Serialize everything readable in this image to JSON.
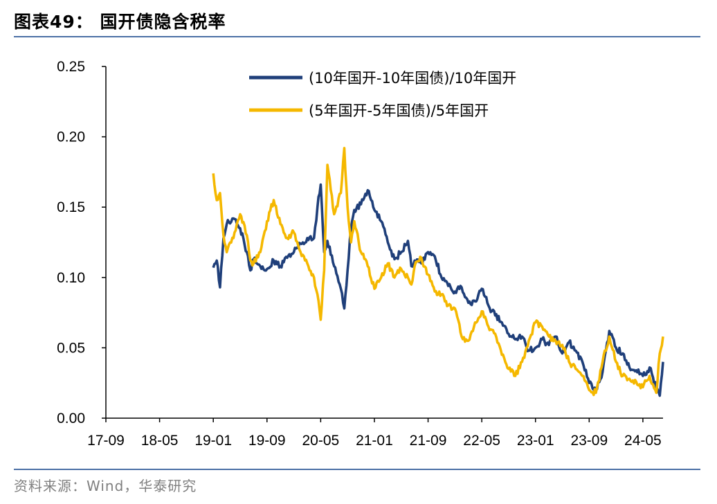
{
  "header": {
    "title": "图表49：  国开债隐含税率"
  },
  "footer": {
    "source": "资料来源：Wind，华泰研究"
  },
  "colors": {
    "series1": "#1f3f7a",
    "series2": "#f5b800",
    "rule": "#4a6fa5"
  },
  "chart_data": {
    "type": "line",
    "title": "",
    "xlabel": "",
    "ylabel": "",
    "ylim": [
      0,
      0.25
    ],
    "yticks": [
      "0.00",
      "0.05",
      "0.10",
      "0.15",
      "0.20",
      "0.25"
    ],
    "xticks": [
      "17-09",
      "18-05",
      "19-01",
      "19-09",
      "20-05",
      "21-01",
      "21-09",
      "22-05",
      "23-01",
      "23-09",
      "24-05"
    ],
    "xlim": [
      "17-09",
      "24-08"
    ],
    "grid": false,
    "legend": "top-center",
    "series": [
      {
        "name": "(10年国开-10年国债)/10年国开",
        "color": "#1f3f7a",
        "points": [
          [
            "19-01",
            0.107
          ],
          [
            "19-01",
            0.112
          ],
          [
            "19-02",
            0.093
          ],
          [
            "19-02",
            0.128
          ],
          [
            "19-03",
            0.138
          ],
          [
            "19-04",
            0.142
          ],
          [
            "19-05",
            0.135
          ],
          [
            "19-06",
            0.118
          ],
          [
            "19-06",
            0.105
          ],
          [
            "19-07",
            0.113
          ],
          [
            "19-08",
            0.108
          ],
          [
            "19-09",
            0.106
          ],
          [
            "19-10",
            0.112
          ],
          [
            "19-11",
            0.108
          ],
          [
            "19-12",
            0.114
          ],
          [
            "20-01",
            0.118
          ],
          [
            "20-02",
            0.124
          ],
          [
            "20-03",
            0.128
          ],
          [
            "20-04",
            0.128
          ],
          [
            "20-04",
            0.15
          ],
          [
            "20-05",
            0.166
          ],
          [
            "20-05",
            0.118
          ],
          [
            "20-06",
            0.126
          ],
          [
            "20-07",
            0.108
          ],
          [
            "20-08",
            0.092
          ],
          [
            "20-08",
            0.078
          ],
          [
            "20-09",
            0.105
          ],
          [
            "20-09",
            0.135
          ],
          [
            "20-10",
            0.148
          ],
          [
            "20-11",
            0.152
          ],
          [
            "20-12",
            0.162
          ],
          [
            "21-01",
            0.148
          ],
          [
            "21-02",
            0.14
          ],
          [
            "21-03",
            0.125
          ],
          [
            "21-04",
            0.113
          ],
          [
            "21-05",
            0.118
          ],
          [
            "21-06",
            0.126
          ],
          [
            "21-06",
            0.108
          ],
          [
            "21-07",
            0.112
          ],
          [
            "21-08",
            0.11
          ],
          [
            "21-09",
            0.118
          ],
          [
            "21-10",
            0.115
          ],
          [
            "21-11",
            0.1
          ],
          [
            "21-12",
            0.094
          ],
          [
            "22-01",
            0.09
          ],
          [
            "22-02",
            0.093
          ],
          [
            "22-03",
            0.082
          ],
          [
            "22-04",
            0.083
          ],
          [
            "22-05",
            0.092
          ],
          [
            "22-06",
            0.08
          ],
          [
            "22-07",
            0.073
          ],
          [
            "22-08",
            0.068
          ],
          [
            "22-09",
            0.06
          ],
          [
            "22-10",
            0.056
          ],
          [
            "22-11",
            0.058
          ],
          [
            "22-12",
            0.048
          ],
          [
            "23-01",
            0.05
          ],
          [
            "23-02",
            0.056
          ],
          [
            "23-03",
            0.052
          ],
          [
            "23-04",
            0.058
          ],
          [
            "23-05",
            0.046
          ],
          [
            "23-06",
            0.054
          ],
          [
            "23-07",
            0.048
          ],
          [
            "23-08",
            0.04
          ],
          [
            "23-09",
            0.025
          ],
          [
            "23-10",
            0.02
          ],
          [
            "23-11",
            0.033
          ],
          [
            "23-12",
            0.062
          ],
          [
            "24-01",
            0.05
          ],
          [
            "24-02",
            0.046
          ],
          [
            "24-03",
            0.036
          ],
          [
            "24-04",
            0.034
          ],
          [
            "24-05",
            0.03
          ],
          [
            "24-06",
            0.036
          ],
          [
            "24-07",
            0.022
          ],
          [
            "24-07",
            0.016
          ],
          [
            "24-08",
            0.04
          ]
        ]
      },
      {
        "name": "(5年国开-5年国债)/5年国开",
        "color": "#f5b800",
        "points": [
          [
            "19-01",
            0.174
          ],
          [
            "19-01",
            0.155
          ],
          [
            "19-02",
            0.16
          ],
          [
            "19-02",
            0.13
          ],
          [
            "19-03",
            0.118
          ],
          [
            "19-04",
            0.128
          ],
          [
            "19-05",
            0.145
          ],
          [
            "19-06",
            0.13
          ],
          [
            "19-06",
            0.112
          ],
          [
            "19-07",
            0.11
          ],
          [
            "19-08",
            0.118
          ],
          [
            "19-09",
            0.14
          ],
          [
            "19-10",
            0.155
          ],
          [
            "19-11",
            0.138
          ],
          [
            "19-12",
            0.128
          ],
          [
            "20-01",
            0.132
          ],
          [
            "20-02",
            0.118
          ],
          [
            "20-03",
            0.11
          ],
          [
            "20-04",
            0.1
          ],
          [
            "20-04",
            0.088
          ],
          [
            "20-05",
            0.07
          ],
          [
            "20-05",
            0.105
          ],
          [
            "20-06",
            0.18
          ],
          [
            "20-07",
            0.145
          ],
          [
            "20-08",
            0.16
          ],
          [
            "20-08",
            0.192
          ],
          [
            "20-09",
            0.15
          ],
          [
            "20-09",
            0.125
          ],
          [
            "20-10",
            0.14
          ],
          [
            "20-11",
            0.118
          ],
          [
            "20-12",
            0.108
          ],
          [
            "21-01",
            0.092
          ],
          [
            "21-02",
            0.1
          ],
          [
            "21-03",
            0.11
          ],
          [
            "21-04",
            0.1
          ],
          [
            "21-05",
            0.106
          ],
          [
            "21-06",
            0.1
          ],
          [
            "21-06",
            0.095
          ],
          [
            "21-07",
            0.108
          ],
          [
            "21-08",
            0.114
          ],
          [
            "21-09",
            0.102
          ],
          [
            "21-10",
            0.09
          ],
          [
            "21-11",
            0.088
          ],
          [
            "21-12",
            0.08
          ],
          [
            "22-01",
            0.078
          ],
          [
            "22-02",
            0.058
          ],
          [
            "22-03",
            0.055
          ],
          [
            "22-04",
            0.068
          ],
          [
            "22-05",
            0.076
          ],
          [
            "22-06",
            0.065
          ],
          [
            "22-07",
            0.06
          ],
          [
            "22-08",
            0.045
          ],
          [
            "22-09",
            0.035
          ],
          [
            "22-10",
            0.03
          ],
          [
            "22-11",
            0.04
          ],
          [
            "22-12",
            0.055
          ],
          [
            "23-01",
            0.068
          ],
          [
            "23-02",
            0.065
          ],
          [
            "23-03",
            0.058
          ],
          [
            "23-04",
            0.055
          ],
          [
            "23-05",
            0.052
          ],
          [
            "23-06",
            0.04
          ],
          [
            "23-07",
            0.035
          ],
          [
            "23-08",
            0.03
          ],
          [
            "23-09",
            0.02
          ],
          [
            "23-10",
            0.018
          ],
          [
            "23-11",
            0.04
          ],
          [
            "23-12",
            0.058
          ],
          [
            "24-01",
            0.04
          ],
          [
            "24-02",
            0.03
          ],
          [
            "24-03",
            0.028
          ],
          [
            "24-04",
            0.026
          ],
          [
            "24-05",
            0.022
          ],
          [
            "24-06",
            0.03
          ],
          [
            "24-07",
            0.018
          ],
          [
            "24-07",
            0.046
          ],
          [
            "24-08",
            0.058
          ]
        ]
      }
    ]
  }
}
